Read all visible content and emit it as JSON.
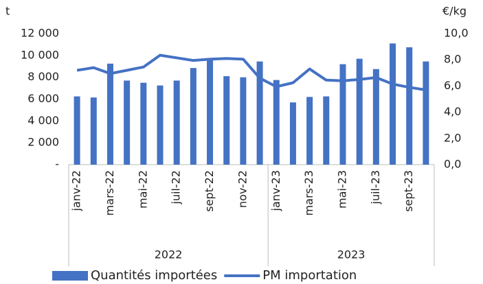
{
  "chart_data": {
    "type": "bar",
    "categories": [
      "janv-22",
      null,
      "mars-22",
      null,
      "mai-22",
      null,
      "juil-22",
      null,
      "sept-22",
      null,
      "nov-22",
      null,
      "janv-23",
      null,
      "mars-23",
      null,
      "mai-23",
      null,
      "juil-23",
      null,
      "sept-23",
      null
    ],
    "x_groups": [
      "2022",
      "2023"
    ],
    "y_label": "t",
    "y2_label": "€/kg",
    "series": [
      {
        "name": "Quantités importées",
        "type": "bar",
        "color": "#4472c4",
        "values": [
          6250,
          6150,
          9250,
          7700,
          7500,
          7250,
          7700,
          8850,
          9700,
          8100,
          8000,
          9450,
          7750,
          5700,
          6200,
          6250,
          9200,
          9700,
          8750,
          11100,
          10750,
          9450
        ]
      },
      {
        "name": "PM importation",
        "type": "line",
        "axis": "y2",
        "color": "#4472c4",
        "values": [
          7.2,
          7.4,
          6.95,
          7.2,
          7.45,
          8.35,
          8.15,
          7.95,
          8.05,
          8.1,
          8.05,
          6.6,
          5.95,
          6.25,
          7.3,
          6.45,
          6.4,
          6.5,
          6.65,
          6.15,
          5.9,
          5.7
        ]
      }
    ],
    "ylim": [
      0,
      12000
    ],
    "yticks": [
      {
        "value": 0,
        "label": "-"
      },
      {
        "value": 2000,
        "label": "2 000"
      },
      {
        "value": 4000,
        "label": "4 000"
      },
      {
        "value": 6000,
        "label": "6 000"
      },
      {
        "value": 8000,
        "label": "8 000"
      },
      {
        "value": 10000,
        "label": "10 000"
      },
      {
        "value": 12000,
        "label": "12 000"
      }
    ],
    "y2lim": [
      0,
      10
    ],
    "y2ticks": [
      {
        "value": 0,
        "label": "0,0"
      },
      {
        "value": 2,
        "label": "2,0"
      },
      {
        "value": 4,
        "label": "4,0"
      },
      {
        "value": 6,
        "label": "6,0"
      },
      {
        "value": 8,
        "label": "8,0"
      },
      {
        "value": 10,
        "label": "10,0"
      }
    ],
    "grid": false,
    "legend": "bottom"
  }
}
